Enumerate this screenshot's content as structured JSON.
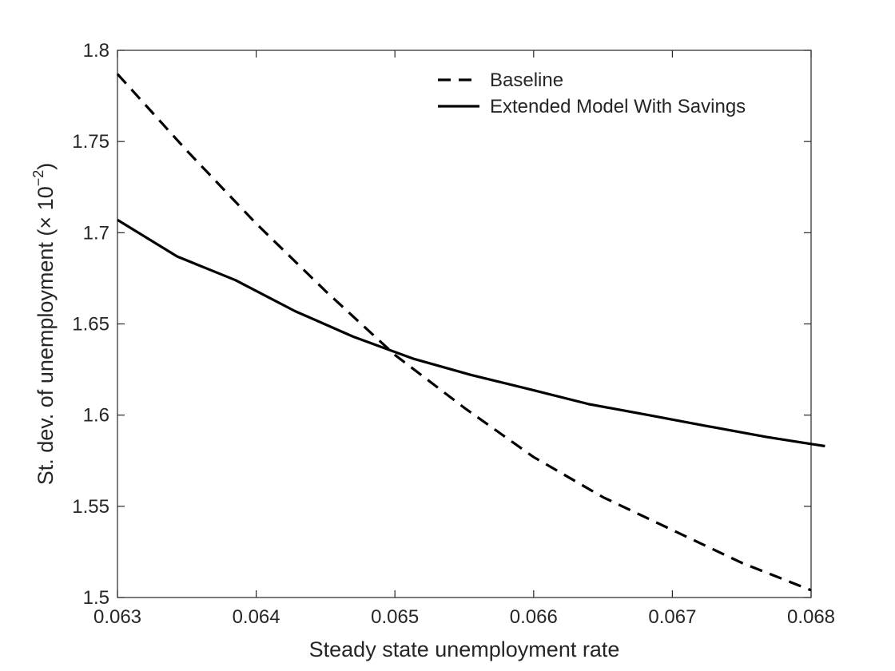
{
  "chart_data": {
    "type": "line",
    "xlabel": "Steady state unemployment rate",
    "ylabel": "St. dev. of unemployment (",
    "ylabel_times": "×",
    "ylabel_base": " 10",
    "ylabel_exp": "−2",
    "ylabel_close": ")",
    "xlim": [
      0.063,
      0.068
    ],
    "ylim": [
      1.5,
      1.8
    ],
    "xticks": [
      0.063,
      0.064,
      0.065,
      0.066,
      0.067,
      0.068
    ],
    "xtick_labels": [
      "0.063",
      "0.064",
      "0.065",
      "0.066",
      "0.067",
      "0.068"
    ],
    "yticks": [
      1.5,
      1.55,
      1.6,
      1.65,
      1.7,
      1.75,
      1.8
    ],
    "ytick_labels": [
      "1.5",
      "1.55",
      "1.6",
      "1.65",
      "1.7",
      "1.75",
      "1.8"
    ],
    "grid": false,
    "legend_position": "top-right",
    "series": [
      {
        "name": "Baseline",
        "style": "dashed",
        "color": "#000000",
        "x": [
          0.063,
          0.0635,
          0.064,
          0.0645,
          0.065,
          0.0655,
          0.066,
          0.0665,
          0.067,
          0.0675,
          0.068
        ],
        "y": [
          1.787,
          1.745,
          1.705,
          1.668,
          1.633,
          1.604,
          1.577,
          1.555,
          1.537,
          1.519,
          1.504
        ]
      },
      {
        "name": "Extended Model With Savings",
        "style": "solid",
        "color": "#000000",
        "x": [
          0.063,
          0.06343,
          0.06385,
          0.06428,
          0.0647,
          0.06513,
          0.06555,
          0.06598,
          0.0664,
          0.06683,
          0.06725,
          0.06768,
          0.0681
        ],
        "y": [
          1.707,
          1.687,
          1.674,
          1.657,
          1.643,
          1.631,
          1.622,
          1.614,
          1.606,
          1.6,
          1.594,
          1.588,
          1.583
        ]
      }
    ]
  }
}
